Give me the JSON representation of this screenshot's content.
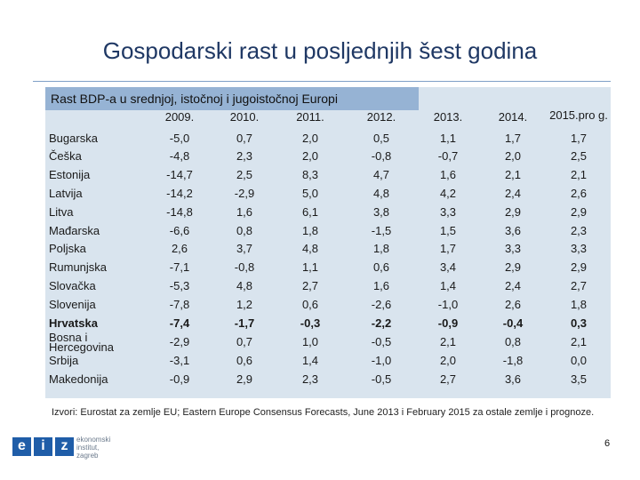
{
  "slide": {
    "title": "Gospodarski rast u posljednjih šest godina",
    "table_heading": "Rast BDP-a u srednjoj, istočnoj i jugoistočnoj Europi",
    "years": [
      "2009.",
      "2010.",
      "2011.",
      "2012.",
      "2013.",
      "2014.",
      "2015.pro g."
    ],
    "rows": [
      {
        "country": "Bugarska",
        "values": [
          "-5,0",
          "0,7",
          "2,0",
          "0,5",
          "1,1",
          "1,7",
          "1,7"
        ]
      },
      {
        "country": "Češka",
        "values": [
          "-4,8",
          "2,3",
          "2,0",
          "-0,8",
          "-0,7",
          "2,0",
          "2,5"
        ]
      },
      {
        "country": "Estonija",
        "values": [
          "-14,7",
          "2,5",
          "8,3",
          "4,7",
          "1,6",
          "2,1",
          "2,1"
        ]
      },
      {
        "country": "Latvija",
        "values": [
          "-14,2",
          "-2,9",
          "5,0",
          "4,8",
          "4,2",
          "2,4",
          "2,6"
        ]
      },
      {
        "country": "Litva",
        "values": [
          "-14,8",
          "1,6",
          "6,1",
          "3,8",
          "3,3",
          "2,9",
          "2,9"
        ]
      },
      {
        "country": "Mađarska",
        "values": [
          "-6,6",
          "0,8",
          "1,8",
          "-1,5",
          "1,5",
          "3,6",
          "2,3"
        ]
      },
      {
        "country": "Poljska",
        "values": [
          "2,6",
          "3,7",
          "4,8",
          "1,8",
          "1,7",
          "3,3",
          "3,3"
        ]
      },
      {
        "country": "Rumunjska",
        "values": [
          "-7,1",
          "-0,8",
          "1,1",
          "0,6",
          "3,4",
          "2,9",
          "2,9"
        ]
      },
      {
        "country": "Slovačka",
        "values": [
          "-5,3",
          "4,8",
          "2,7",
          "1,6",
          "1,4",
          "2,4",
          "2,7"
        ]
      },
      {
        "country": "Slovenija",
        "values": [
          "-7,8",
          "1,2",
          "0,6",
          "-2,6",
          "-1,0",
          "2,6",
          "1,8"
        ]
      },
      {
        "country": "Hrvatska",
        "values": [
          "-7,4",
          "-1,7",
          "-0,3",
          "-2,2",
          "-0,9",
          "-0,4",
          "0,3"
        ]
      },
      {
        "country": "Bosna i Hercegovina",
        "values": [
          "-2,9",
          "0,7",
          "1,0",
          "-0,5",
          "2,1",
          "0,8",
          "2,1"
        ]
      },
      {
        "country": "Srbija",
        "values": [
          "-3,1",
          "0,6",
          "1,4",
          "-1,0",
          "2,0",
          "-1,8",
          "0,0"
        ]
      },
      {
        "country": "Makedonija",
        "values": [
          "-0,9",
          "2,9",
          "2,3",
          "-0,5",
          "2,7",
          "3,6",
          "3,5"
        ]
      }
    ],
    "source": "Izvori: Eurostat za zemlje EU; Eastern Europe Consensus Forecasts, June 2013 i February 2015 za ostale zemlje i prognoze.",
    "logo_letters": [
      "e",
      "i",
      "z"
    ],
    "logo_text": [
      "ekonomski",
      "institut,",
      "zagreb"
    ],
    "page_number": "6"
  }
}
